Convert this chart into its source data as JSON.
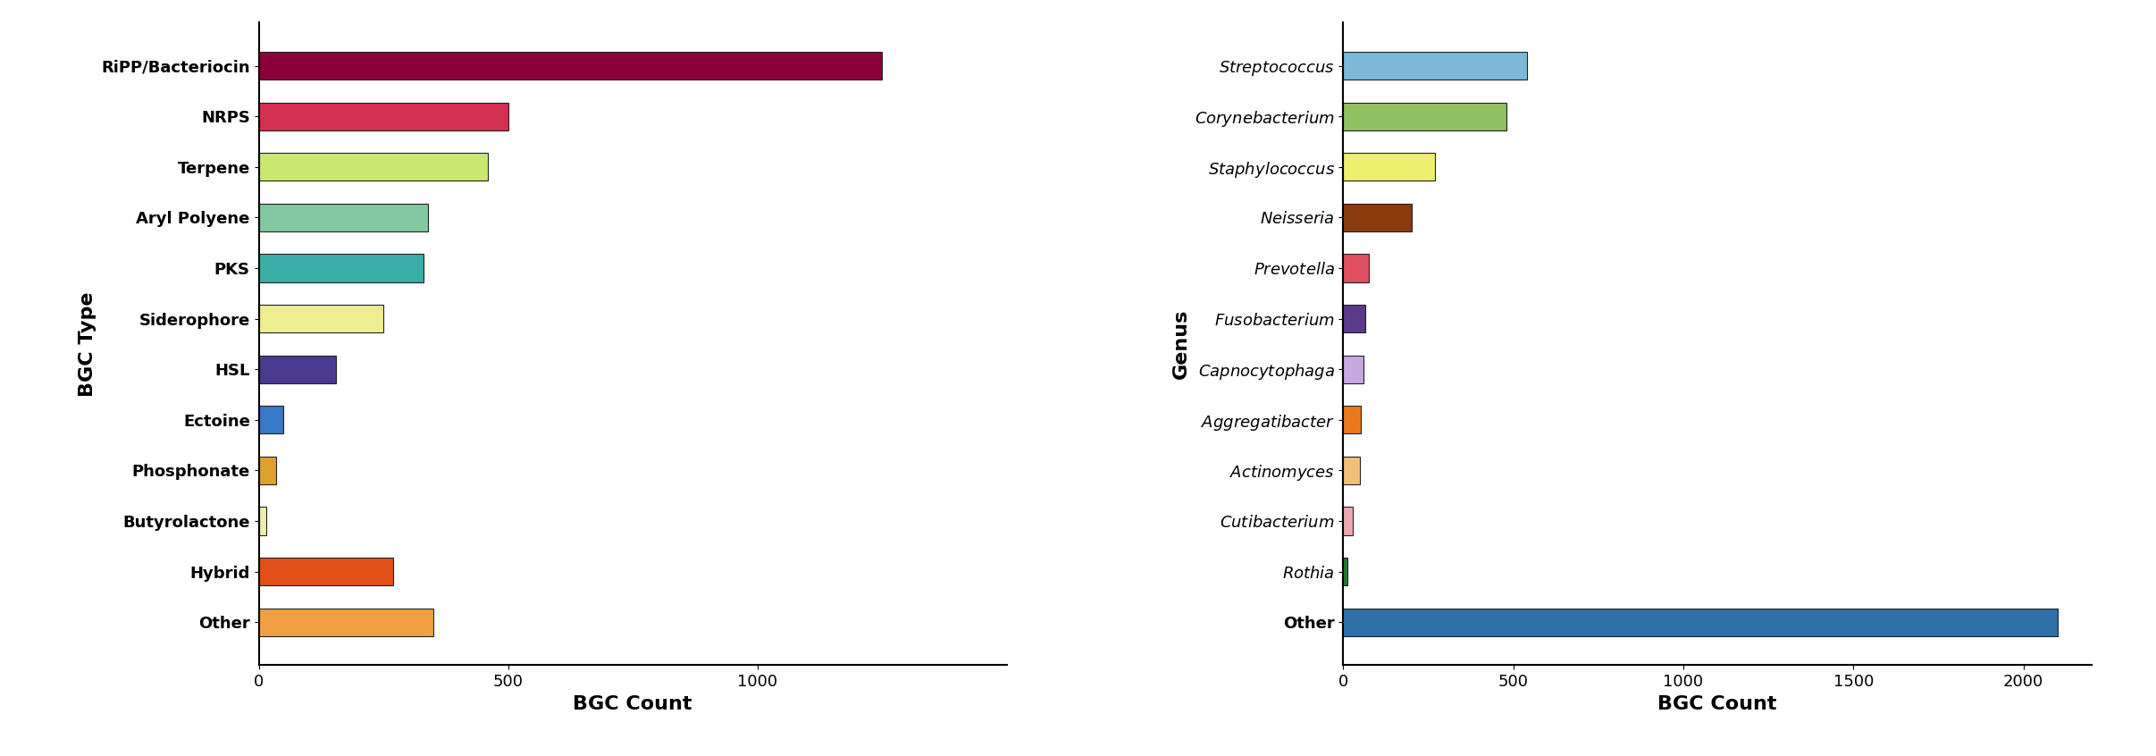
{
  "bgc_types": [
    "RiPP/Bacteriocin",
    "NRPS",
    "Terpene",
    "Aryl Polyene",
    "PKS",
    "Siderophore",
    "HSL",
    "Ectoine",
    "Phosphonate",
    "Butyrolactone",
    "Hybrid",
    "Other"
  ],
  "bgc_values": [
    1250,
    500,
    460,
    340,
    330,
    250,
    155,
    50,
    35,
    15,
    270,
    350
  ],
  "bgc_colors": [
    "#8B0038",
    "#D43050",
    "#C8E870",
    "#82C8A0",
    "#3AADA8",
    "#EEEE90",
    "#4A3A90",
    "#3878C8",
    "#E0A030",
    "#EEEEAA",
    "#E05018",
    "#F0A040"
  ],
  "genus_labels": [
    "Streptococcus",
    "Corynebacterium",
    "Staphylococcus",
    "Neisseria",
    "Prevotella",
    "Fusobacterium",
    "Capnocytophaga",
    "Aggregatibacter",
    "Actinomyces",
    "Cutibacterium",
    "Rothia",
    "Other"
  ],
  "genus_values": [
    540,
    480,
    270,
    200,
    75,
    65,
    58,
    52,
    48,
    28,
    12,
    2100
  ],
  "genus_colors": [
    "#7EB8D8",
    "#90C060",
    "#EEEE70",
    "#8B3A10",
    "#E05060",
    "#5B3A8A",
    "#C8A8E0",
    "#E87820",
    "#F0C078",
    "#F0A8B0",
    "#207830",
    "#2E6FA8"
  ],
  "bgc_xlabel": "BGC Count",
  "bgc_ylabel": "BGC Type",
  "genus_xlabel": "BGC Count",
  "genus_ylabel": "Genus",
  "bgc_xlim": [
    0,
    1500
  ],
  "genus_xlim": [
    0,
    2200
  ],
  "bgc_xticks": [
    0,
    500,
    1000
  ],
  "genus_xticks": [
    0,
    500,
    1000,
    1500,
    2000
  ],
  "background_color": "#FFFFFF",
  "bar_edge_color": "#222222",
  "bar_linewidth": 0.8,
  "bar_height": 0.55,
  "tick_labelsize": 13,
  "axis_labelsize": 16
}
